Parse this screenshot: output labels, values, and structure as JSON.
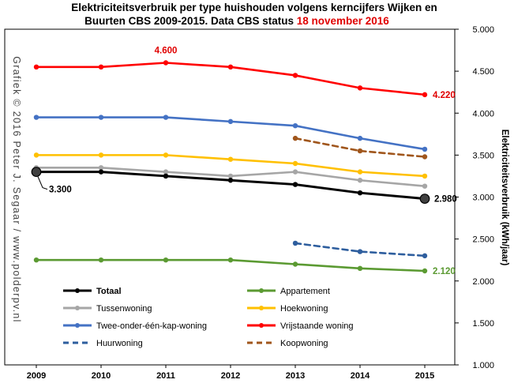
{
  "chart_data": {
    "type": "line",
    "title_line1": "Elektriciteitsverbruik per type huishouden volgens kerncijfers Wijken  en",
    "title_line2": "Buurten CBS 2009-2015. Data CBS status ",
    "title_date": "18 november 2016",
    "ylabel": "Elektriciteitsverbruik (kWh/jaar)",
    "credit": "Grafiek © 2016 Peter J. Segaar / www.polderpv.nl",
    "x": [
      "2009",
      "2010",
      "2011",
      "2012",
      "2013",
      "2014",
      "2015"
    ],
    "ylim": [
      1000,
      5000
    ],
    "ytick_labels": [
      "1.000",
      "1.500",
      "2.000",
      "2.500",
      "3.000",
      "3.500",
      "4.000",
      "4.500",
      "5.000"
    ],
    "ytick_values": [
      1000,
      1500,
      2000,
      2500,
      3000,
      3500,
      4000,
      4500,
      5000
    ],
    "grid": false,
    "legend_position": "lower-left",
    "series": [
      {
        "name": "Totaal",
        "color": "#000000",
        "dash": false,
        "values": [
          3300,
          3300,
          3250,
          3200,
          3150,
          3050,
          2980
        ]
      },
      {
        "name": "Appartement",
        "color": "#5b9a32",
        "dash": false,
        "values": [
          2250,
          2250,
          2250,
          2250,
          2200,
          2150,
          2120
        ]
      },
      {
        "name": "Tussenwoning",
        "color": "#a6a6a6",
        "dash": false,
        "values": [
          3350,
          3350,
          3300,
          3250,
          3300,
          3200,
          3130
        ]
      },
      {
        "name": "Hoekwoning",
        "color": "#ffc000",
        "dash": false,
        "values": [
          3500,
          3500,
          3500,
          3450,
          3400,
          3300,
          3250
        ]
      },
      {
        "name": "Twee-onder-één-kap-woning",
        "color": "#4472c4",
        "dash": false,
        "values": [
          3950,
          3950,
          3950,
          3900,
          3850,
          3700,
          3570
        ]
      },
      {
        "name": "Vrijstaande woning",
        "color": "#ff0000",
        "dash": false,
        "values": [
          4550,
          4550,
          4600,
          4550,
          4450,
          4300,
          4220
        ]
      },
      {
        "name": "Huurwoning",
        "color": "#2e5e9e",
        "dash": true,
        "values": [
          null,
          null,
          null,
          null,
          2450,
          2350,
          2300
        ]
      },
      {
        "name": "Koopwoning",
        "color": "#a0561c",
        "dash": true,
        "values": [
          null,
          null,
          null,
          null,
          3700,
          3550,
          3480
        ]
      }
    ],
    "annotations": [
      {
        "text": "4.600",
        "color": "#e00000"
      },
      {
        "text": "4.220",
        "color": "#e00000"
      },
      {
        "text": "3.300",
        "color": "#000000"
      },
      {
        "text": "2.980",
        "color": "#000000"
      },
      {
        "text": "2.120",
        "color": "#5b9a32"
      }
    ]
  }
}
